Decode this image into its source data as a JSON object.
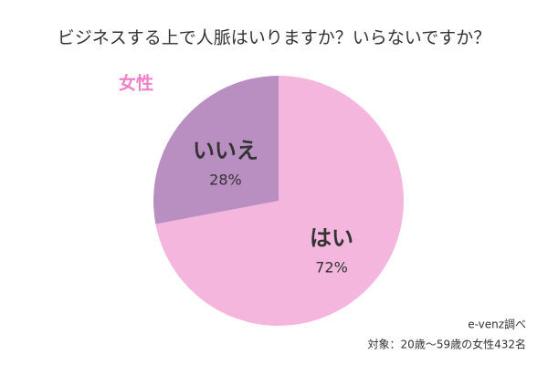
{
  "chart_data": {
    "type": "pie",
    "title": "ビジネスする上で人脈はいりますか？いらないですか？",
    "subtitle": "女性",
    "categories": [
      "はい",
      "いいえ"
    ],
    "values": [
      72,
      28
    ],
    "value_labels": [
      "72%",
      "28%"
    ],
    "colors": [
      "#f4b6dc",
      "#b98fc2"
    ],
    "source": [
      "e-venz調べ",
      "対象：20歳〜59歳の女性432名"
    ]
  }
}
